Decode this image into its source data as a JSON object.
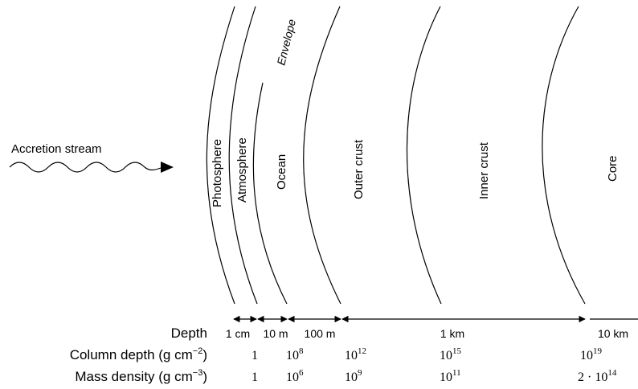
{
  "diagram": {
    "accretion_label": "Accretion stream",
    "envelope_label": "Envelope",
    "layers": [
      {
        "label": "Photosphere"
      },
      {
        "label": "Atmosphere"
      },
      {
        "label": "Ocean"
      },
      {
        "label": "Outer crust"
      },
      {
        "label": "Inner crust"
      },
      {
        "label": "Core"
      }
    ],
    "rows": {
      "depth": {
        "label": "Depth",
        "values": [
          "1 cm",
          "10 m",
          "100 m",
          "1 km",
          "10 km"
        ]
      },
      "column_depth": {
        "label_prefix": "Column depth (g cm",
        "label_exp": "−2",
        "label_suffix": ")",
        "values": [
          {
            "base": "1",
            "exp": ""
          },
          {
            "base": "10",
            "exp": "8"
          },
          {
            "base": "10",
            "exp": "12"
          },
          {
            "base": "10",
            "exp": "15"
          },
          {
            "base": "10",
            "exp": "19"
          }
        ]
      },
      "mass_density": {
        "label_prefix": "Mass density (g cm",
        "label_exp": "−3",
        "label_suffix": ")",
        "values": [
          {
            "base": "1",
            "exp": ""
          },
          {
            "base": "10",
            "exp": "6"
          },
          {
            "base": "10",
            "exp": "9"
          },
          {
            "base": "10",
            "exp": "11"
          },
          {
            "base": "2 · 10",
            "exp": "14"
          }
        ]
      }
    }
  }
}
